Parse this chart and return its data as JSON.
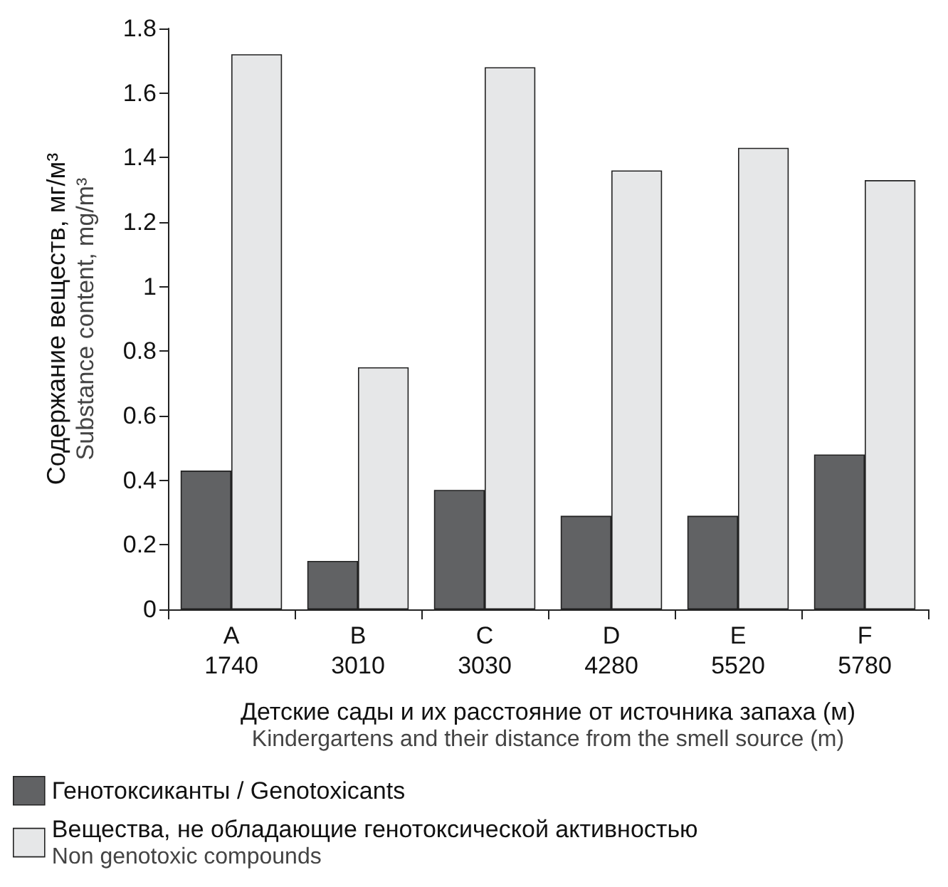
{
  "chart_data": {
    "type": "bar",
    "ylabel": "Содержание веществ, мг/м³\nSubstance content, mg/m³",
    "xlabel": "Детские сады и их расстояние от источника запаха (м)\nKindergartens and their distance from the smell source (m)",
    "categories": [
      "A\n1740",
      "B\n3010",
      "C\n3030",
      "D\n4280",
      "E\n5520",
      "F\n5780"
    ],
    "series": [
      {
        "name": "Генотоксиканты / Genotoxicants",
        "color": "#616264",
        "values": [
          0.43,
          0.15,
          0.37,
          0.29,
          0.29,
          0.48
        ]
      },
      {
        "name": "Вещества, не обладающие генотоксической активностью\nNon genotoxic compounds",
        "color": "#e6e7e8",
        "values": [
          1.72,
          0.75,
          1.68,
          1.36,
          1.43,
          1.33
        ]
      }
    ],
    "ylim": [
      0,
      1.8
    ],
    "yticks": [
      0,
      0.2,
      0.4,
      0.6,
      0.8,
      1,
      1.2,
      1.4,
      1.6,
      1.8
    ],
    "grid": false,
    "legend": "bottom left"
  }
}
